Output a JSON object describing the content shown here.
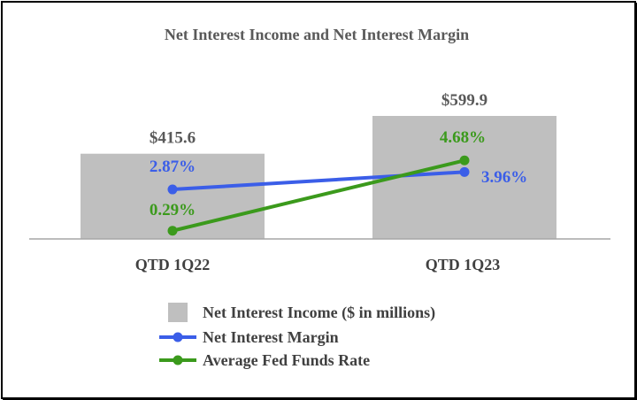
{
  "chart_data": {
    "type": "bar",
    "title": "Net Interest Income and Net Interest Margin",
    "categories": [
      "QTD 1Q22",
      "QTD 1Q23"
    ],
    "series": [
      {
        "name": "Net Interest Income ($ in millions)",
        "type": "bar",
        "color": "#bfbfbf",
        "values": [
          415.6,
          599.9
        ],
        "labels": [
          "$415.6",
          "$599.9"
        ],
        "label_color": "#595959"
      },
      {
        "name": "Net Interest Margin",
        "type": "line",
        "color": "#3b5ee8",
        "values": [
          2.87,
          3.96
        ],
        "labels": [
          "2.87%",
          "3.96%"
        ]
      },
      {
        "name": "Average Fed Funds Rate",
        "type": "line",
        "color": "#3b9a1c",
        "values": [
          0.29,
          4.68
        ],
        "labels": [
          "0.29%",
          "4.68%"
        ]
      }
    ],
    "legend_position": "bottom-center",
    "grid": false
  }
}
